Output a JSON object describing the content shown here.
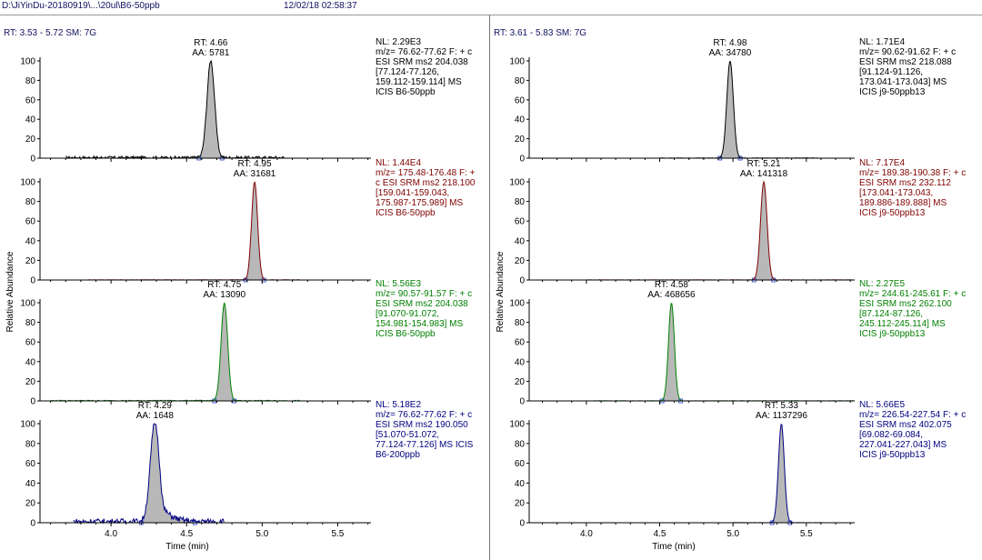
{
  "header": {
    "path": "D:\\JiYinDu-20180919\\...\\20ul\\B6-50ppb",
    "timestamp": "12/02/18 02:58:37"
  },
  "chart_data": [
    {
      "type": "line",
      "panel": "left",
      "range_label": "RT: 3.53 - 5.72  SM: 7G",
      "ylabel": "Relative Abundance",
      "xlabel": "Time (min)",
      "xlim": [
        3.53,
        5.72
      ],
      "xticks": [
        "4.0",
        "4.5",
        "5.0",
        "5.5"
      ],
      "yticks": [
        "0",
        "20",
        "40",
        "60",
        "80",
        "100"
      ],
      "ylim": [
        0,
        100
      ],
      "traces": [
        {
          "color": "#000000",
          "rt": 4.66,
          "area": 5781,
          "rt_label": "RT: 4.66",
          "aa_label": "AA: 5781",
          "width": 0.025,
          "noise_start": 3.7,
          "noise_end": 5.15,
          "noise_amp": 3,
          "info": [
            "NL: 2.29E3",
            "m/z= 76.62-77.62 F: + c",
            "ESI SRM ms2 204.038",
            "[77.124-77.126,",
            "159.112-159.114]  MS",
            "ICIS  B6-50ppb"
          ]
        },
        {
          "color": "#800000",
          "rt": 4.95,
          "area": 31681,
          "rt_label": "RT: 4.95",
          "aa_label": "AA: 31681",
          "width": 0.02,
          "noise_start": 3.85,
          "noise_end": 5.25,
          "noise_amp": 0.5,
          "info": [
            "NL: 1.44E4",
            "m/z= 175.48-176.48 F: +",
            "c ESI SRM ms2 218.100",
            "[159.041-159.043,",
            "175.987-175.989]  MS",
            "ICIS  B6-50ppb"
          ]
        },
        {
          "color": "#008000",
          "rt": 4.75,
          "area": 13090,
          "rt_label": "RT: 4.75",
          "aa_label": "AA: 13090",
          "width": 0.022,
          "noise_start": 3.6,
          "noise_end": 5.25,
          "noise_amp": 1,
          "info": [
            "NL: 5.56E3",
            "m/z= 90.57-91.57 F: + c",
            "ESI SRM ms2 204.038",
            "[91.070-91.072,",
            "154.981-154.983]  MS",
            "ICIS  B6-50ppb"
          ]
        },
        {
          "color": "#000080",
          "rt": 4.29,
          "area": 1648,
          "rt_label": "RT: 4.29",
          "aa_label": "AA: 1648",
          "width": 0.03,
          "noise_start": 3.75,
          "noise_end": 4.75,
          "noise_amp": 6,
          "tail": true,
          "info": [
            "NL: 5.18E2",
            "m/z= 76.62-77.62 F: + c",
            "ESI SRM ms2 190.050",
            "[51.070-51.072,",
            "77.124-77.126]  MS  ICIS",
            "B6-200ppb"
          ]
        }
      ]
    },
    {
      "type": "line",
      "panel": "right",
      "range_label": "RT: 3.61 - 5.83  SM: 7G",
      "ylabel": "Relative Abundance",
      "xlabel": "Time (min)",
      "xlim": [
        3.61,
        5.83
      ],
      "xticks": [
        "4.0",
        "4.5",
        "5.0",
        "5.5"
      ],
      "yticks": [
        "0",
        "20",
        "40",
        "60",
        "80",
        "100"
      ],
      "ylim": [
        0,
        100
      ],
      "traces": [
        {
          "color": "#000000",
          "rt": 4.98,
          "area": 34780,
          "rt_label": "RT: 4.98",
          "aa_label": "AA: 34780",
          "width": 0.022,
          "noise_start": 4.5,
          "noise_end": 5.6,
          "noise_amp": 0.5,
          "info": [
            "NL: 1.71E4",
            "m/z= 90.62-91.62 F: + c",
            "ESI SRM ms2 218.088",
            "[91.124-91.126,",
            "173.041-173.043]  MS",
            "ICIS  j9-50ppb13"
          ]
        },
        {
          "color": "#800000",
          "rt": 5.21,
          "area": 141318,
          "rt_label": "RT: 5.21",
          "aa_label": "AA: 141318",
          "width": 0.022,
          "noise_start": 4.0,
          "noise_end": 5.83,
          "noise_amp": 0.3,
          "info": [
            "NL: 7.17E4",
            "m/z= 189.38-190.38 F: + c",
            "ESI SRM ms2 232.112",
            "[173.041-173.043,",
            "189.886-189.888]  MS",
            "ICIS  j9-50ppb13"
          ]
        },
        {
          "color": "#008000",
          "rt": 4.58,
          "area": 468656,
          "rt_label": "RT: 4.58",
          "aa_label": "AA: 468656",
          "width": 0.02,
          "noise_start": 4.05,
          "noise_end": 5.83,
          "noise_amp": 0.3,
          "info": [
            "NL: 2.27E5",
            "m/z= 244.61-245.61 F: + c",
            "ESI SRM ms2 262.100",
            "[87.124-87.126,",
            "245.112-245.114]  MS",
            "ICIS  j9-50ppb13"
          ]
        },
        {
          "color": "#000080",
          "rt": 5.33,
          "area": 1137296,
          "rt_label": "RT: 5.33",
          "aa_label": "AA: 1137296",
          "width": 0.02,
          "noise_start": 5.0,
          "noise_end": 5.6,
          "noise_amp": 0.3,
          "info": [
            "NL: 5.66E5",
            "m/z= 226.54-227.54 F: + c",
            "ESI SRM ms2 402.075",
            "[69.082-69.084,",
            "227.041-227.043]  MS",
            "ICIS  j9-50ppb13"
          ]
        }
      ]
    }
  ]
}
